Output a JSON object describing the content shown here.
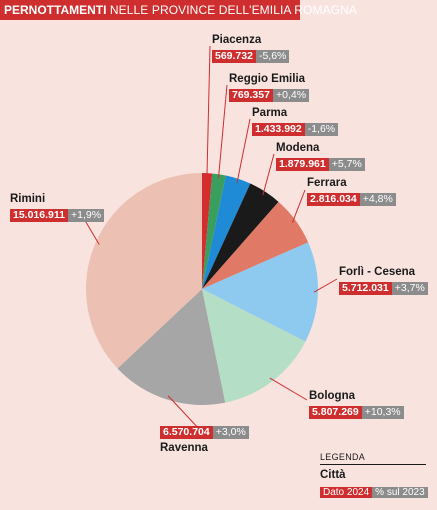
{
  "header": {
    "title_bold": "PERNOTTAMENTI",
    "title_rest": " NELLE PROVINCE DELL'EMILIA ROMAGNA"
  },
  "chart_data": {
    "type": "pie",
    "title": "PERNOTTAMENTI NELLE PROVINCE DELL'EMILIA ROMAGNA",
    "slices": [
      {
        "name": "Piacenza",
        "value": 569732,
        "value_label": "569.732",
        "change": "-5,6%",
        "color": "#d42d2d"
      },
      {
        "name": "Reggio Emilia",
        "value": 769357,
        "value_label": "769.357",
        "change": "+0,4%",
        "color": "#3a9e5e"
      },
      {
        "name": "Parma",
        "value": 1433992,
        "value_label": "1.433.992",
        "change": "-1,6%",
        "color": "#1f8bd6"
      },
      {
        "name": "Modena",
        "value": 1879961,
        "value_label": "1.879.961",
        "change": "+5,7%",
        "color": "#1a1a1a"
      },
      {
        "name": "Ferrara",
        "value": 2816034,
        "value_label": "2.816.034",
        "change": "+4,8%",
        "color": "#e07a66"
      },
      {
        "name": "Forlì - Cesena",
        "value": 5712031,
        "value_label": "5.712.031",
        "change": "+3,7%",
        "color": "#8ecaf0"
      },
      {
        "name": "Bologna",
        "value": 5807269,
        "value_label": "5.807.269",
        "change": "+10,3%",
        "color": "#b4dfc6"
      },
      {
        "name": "Ravenna",
        "value": 6570704,
        "value_label": "6.570.704",
        "change": "+3,0%",
        "color": "#a6a6a6"
      },
      {
        "name": "Rimini",
        "value": 15016911,
        "value_label": "15.016.911",
        "change": "+1,9%",
        "color": "#ecc0b3"
      }
    ]
  },
  "legend": {
    "title": "LEGENDA",
    "city": "Città",
    "value_label": "Dato 2024",
    "pct_label": "% sul 2023"
  }
}
